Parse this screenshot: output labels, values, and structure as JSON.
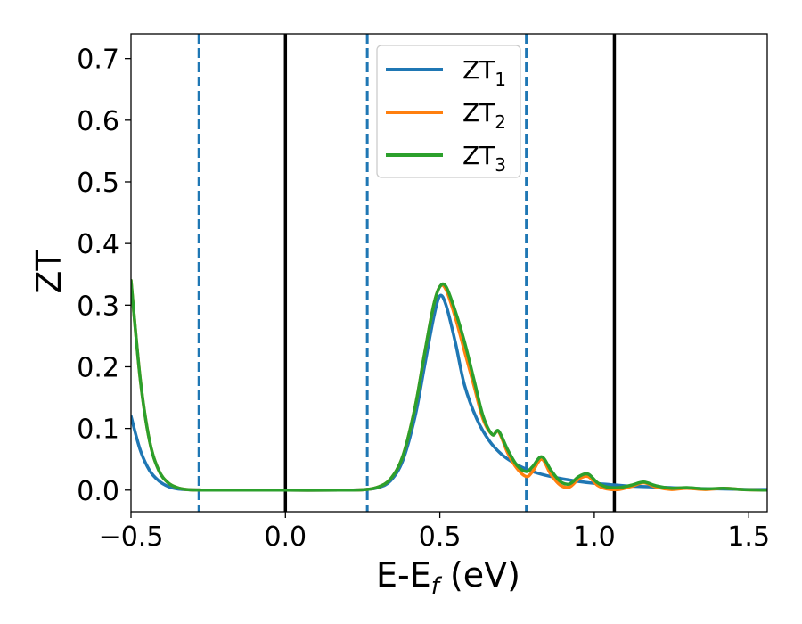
{
  "chart_data": {
    "type": "line",
    "xlabel": "E-E_f (eV)",
    "xlabel_parts": {
      "main": "E-E",
      "sub": "f",
      "rest": " (eV)"
    },
    "ylabel": "ZT",
    "xlim": [
      -0.5,
      1.56
    ],
    "ylim": [
      -0.035,
      0.74
    ],
    "xticks": [
      -0.5,
      0.0,
      0.5,
      1.0,
      1.5
    ],
    "xtick_labels": [
      "−0.5",
      "0.0",
      "0.5",
      "1.0",
      "1.5"
    ],
    "yticks": [
      0.0,
      0.1,
      0.2,
      0.3,
      0.4,
      0.5,
      0.6,
      0.7
    ],
    "ytick_labels": [
      "0.0",
      "0.1",
      "0.2",
      "0.3",
      "0.4",
      "0.5",
      "0.6",
      "0.7"
    ],
    "grid": false,
    "legend_position": "top-center",
    "vlines": [
      {
        "x": -0.28,
        "style": "dashed",
        "color": "#1f77b4"
      },
      {
        "x": 0.0,
        "style": "solid",
        "color": "#000000"
      },
      {
        "x": 0.265,
        "style": "dashed",
        "color": "#1f77b4"
      },
      {
        "x": 0.78,
        "style": "dashed",
        "color": "#1f77b4"
      },
      {
        "x": 1.065,
        "style": "solid",
        "color": "#000000"
      }
    ],
    "series": [
      {
        "name": "ZT_1",
        "label_main": "ZT",
        "label_sub": "1",
        "color": "#1f77b4",
        "x": [
          -0.5,
          -0.47,
          -0.44,
          -0.41,
          -0.38,
          -0.35,
          -0.32,
          -0.28,
          -0.2,
          0.0,
          0.2,
          0.26,
          0.3,
          0.34,
          0.38,
          0.42,
          0.45,
          0.48,
          0.5,
          0.52,
          0.55,
          0.58,
          0.62,
          0.66,
          0.7,
          0.74,
          0.78,
          0.82,
          0.86,
          0.9,
          0.95,
          1.0,
          1.05,
          1.1,
          1.2,
          1.3,
          1.4,
          1.5,
          1.56
        ],
        "y": [
          0.12,
          0.065,
          0.032,
          0.015,
          0.006,
          0.002,
          0.0008,
          0.0002,
          0.0,
          0.0,
          0.0,
          0.001,
          0.004,
          0.015,
          0.048,
          0.12,
          0.2,
          0.28,
          0.315,
          0.3,
          0.24,
          0.17,
          0.115,
          0.08,
          0.058,
          0.044,
          0.034,
          0.027,
          0.022,
          0.018,
          0.014,
          0.011,
          0.009,
          0.007,
          0.005,
          0.003,
          0.002,
          0.001,
          0.001
        ]
      },
      {
        "name": "ZT_2",
        "label_main": "ZT",
        "label_sub": "2",
        "color": "#ff7f0e",
        "x": [
          -0.5,
          -0.47,
          -0.44,
          -0.41,
          -0.38,
          -0.35,
          -0.32,
          -0.28,
          -0.2,
          0.0,
          0.2,
          0.26,
          0.3,
          0.34,
          0.38,
          0.42,
          0.45,
          0.48,
          0.5,
          0.52,
          0.55,
          0.58,
          0.61,
          0.64,
          0.67,
          0.69,
          0.72,
          0.75,
          0.78,
          0.8,
          0.83,
          0.86,
          0.89,
          0.92,
          0.95,
          0.98,
          1.01,
          1.04,
          1.08,
          1.12,
          1.16,
          1.2,
          1.25,
          1.3,
          1.36,
          1.42,
          1.48,
          1.56
        ],
        "y": [
          0.34,
          0.18,
          0.08,
          0.032,
          0.012,
          0.004,
          0.001,
          0.0002,
          0.0,
          0.0,
          0.0,
          0.001,
          0.005,
          0.018,
          0.055,
          0.135,
          0.22,
          0.3,
          0.33,
          0.325,
          0.28,
          0.225,
          0.17,
          0.115,
          0.09,
          0.095,
          0.06,
          0.035,
          0.022,
          0.03,
          0.05,
          0.025,
          0.008,
          0.005,
          0.018,
          0.022,
          0.008,
          0.002,
          0.001,
          0.006,
          0.012,
          0.005,
          0.001,
          0.003,
          0.001,
          0.003,
          0.001,
          0.0
        ]
      },
      {
        "name": "ZT_3",
        "label_main": "ZT",
        "label_sub": "3",
        "color": "#2ca02c",
        "x": [
          -0.5,
          -0.47,
          -0.44,
          -0.41,
          -0.38,
          -0.35,
          -0.32,
          -0.28,
          -0.2,
          0.0,
          0.2,
          0.26,
          0.3,
          0.34,
          0.38,
          0.42,
          0.45,
          0.48,
          0.5,
          0.52,
          0.55,
          0.58,
          0.61,
          0.64,
          0.67,
          0.69,
          0.72,
          0.75,
          0.78,
          0.8,
          0.83,
          0.86,
          0.89,
          0.92,
          0.95,
          0.98,
          1.01,
          1.04,
          1.08,
          1.12,
          1.16,
          1.2,
          1.25,
          1.3,
          1.36,
          1.42,
          1.48,
          1.56
        ],
        "y": [
          0.34,
          0.18,
          0.08,
          0.032,
          0.012,
          0.004,
          0.001,
          0.0002,
          0.0,
          0.0,
          0.0,
          0.001,
          0.005,
          0.018,
          0.055,
          0.135,
          0.22,
          0.3,
          0.33,
          0.33,
          0.29,
          0.24,
          0.18,
          0.12,
          0.09,
          0.096,
          0.065,
          0.04,
          0.03,
          0.038,
          0.054,
          0.032,
          0.014,
          0.01,
          0.022,
          0.026,
          0.012,
          0.005,
          0.004,
          0.008,
          0.013,
          0.007,
          0.003,
          0.004,
          0.002,
          0.003,
          0.001,
          0.0
        ]
      }
    ]
  }
}
